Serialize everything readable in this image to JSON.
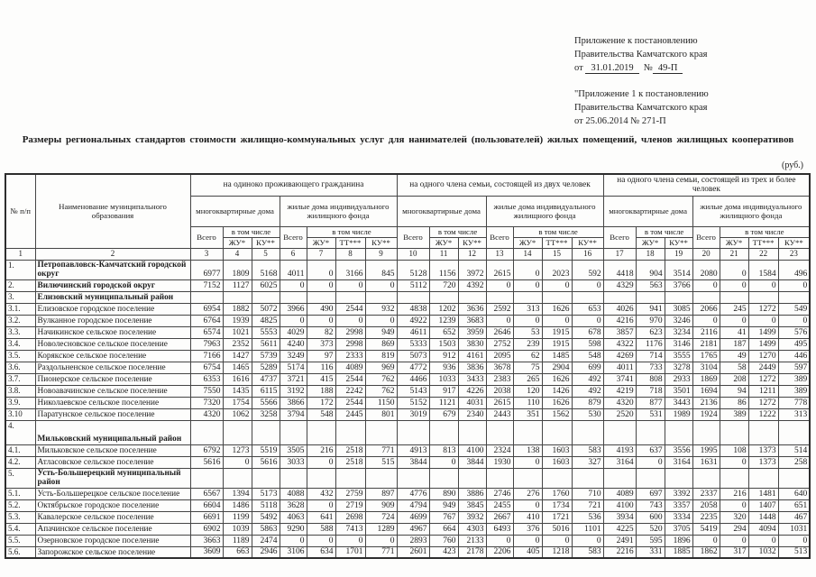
{
  "appendix_top": {
    "line1": "Приложение к постановлению",
    "line2": "Правительства Камчатского края",
    "prefix": "от",
    "date": "31.01.2019",
    "num_sign": "№",
    "number": "49-П"
  },
  "appendix_bottom": {
    "line1": "\"Приложение 1 к постановлению",
    "line2": "Правительства Камчатского края",
    "line3": "от 25.06.2014   № 271-П"
  },
  "title": "Размеры региональных стандартов стоимости жилищно-коммунальных услуг для нанимателей (пользователей) жилых помещений, членов жилищных кооперативов",
  "currency_note": "(руб.)",
  "table": {
    "headers": {
      "num": "№ п/п",
      "name": "Наименование муниципального образования",
      "groups": [
        "на одиноко проживающего гражданина",
        "на одного члена семьи, состоящей из двух человек",
        "на одного члена семьи, состоящей из трех и более человек"
      ],
      "mkd": "многоквартирные дома",
      "izhf": "жилые дома индивидуального жилищного фонда",
      "total": "Всего",
      "including": "в том числе",
      "zhu": "ЖУ*",
      "tt": "ТТ***",
      "ku": "КУ**"
    },
    "column_numbers": [
      "1",
      "2",
      "3",
      "4",
      "5",
      "6",
      "7",
      "8",
      "9",
      "10",
      "11",
      "12",
      "13",
      "14",
      "15",
      "16",
      "17",
      "18",
      "19",
      "20",
      "21",
      "22",
      "23"
    ],
    "rows": [
      {
        "num": "1.",
        "name": "Петропавловск-Камчатский городской округ",
        "bold": true,
        "values": [
          6977,
          1809,
          5168,
          4011,
          0,
          3166,
          845,
          5128,
          1156,
          3972,
          2615,
          0,
          2023,
          592,
          4418,
          904,
          3514,
          2080,
          0,
          1584,
          496
        ]
      },
      {
        "num": "2.",
        "name": "Вилючинский городской округ",
        "bold": true,
        "values": [
          7152,
          1127,
          6025,
          0,
          0,
          0,
          0,
          5112,
          720,
          4392,
          0,
          0,
          0,
          0,
          4329,
          563,
          3766,
          0,
          0,
          0,
          0
        ]
      },
      {
        "num": "3.",
        "name": "Елизовский муниципальный район",
        "bold": true,
        "values": []
      },
      {
        "num": "3.1.",
        "name": "Елизовское городское поселение",
        "values": [
          6954,
          1882,
          5072,
          3966,
          490,
          2544,
          932,
          4838,
          1202,
          3636,
          2592,
          313,
          1626,
          653,
          4026,
          941,
          3085,
          2066,
          245,
          1272,
          549
        ]
      },
      {
        "num": "3.2.",
        "name": "Вулканное городское поселение",
        "values": [
          6764,
          1939,
          4825,
          0,
          0,
          0,
          0,
          4922,
          1239,
          3683,
          0,
          0,
          0,
          0,
          4216,
          970,
          3246,
          0,
          0,
          0,
          0
        ]
      },
      {
        "num": "3.3.",
        "name": "Начикинское сельское поселение",
        "values": [
          6574,
          1021,
          5553,
          4029,
          82,
          2998,
          949,
          4611,
          652,
          3959,
          2646,
          53,
          1915,
          678,
          3857,
          623,
          3234,
          2116,
          41,
          1499,
          576
        ]
      },
      {
        "num": "3.4.",
        "name": "Новолесновское сельское поселение",
        "values": [
          7963,
          2352,
          5611,
          4240,
          373,
          2998,
          869,
          5333,
          1503,
          3830,
          2752,
          239,
          1915,
          598,
          4322,
          1176,
          3146,
          2181,
          187,
          1499,
          495
        ]
      },
      {
        "num": "3.5.",
        "name": "Корякское сельское поселение",
        "values": [
          7166,
          1427,
          5739,
          3249,
          97,
          2333,
          819,
          5073,
          912,
          4161,
          2095,
          62,
          1485,
          548,
          4269,
          714,
          3555,
          1765,
          49,
          1270,
          446
        ]
      },
      {
        "num": "3.6.",
        "name": "Раздольненское сельское поселение",
        "values": [
          6754,
          1465,
          5289,
          5174,
          116,
          4089,
          969,
          4772,
          936,
          3836,
          3678,
          75,
          2904,
          699,
          4011,
          733,
          3278,
          3104,
          58,
          2449,
          597
        ]
      },
      {
        "num": "3.7.",
        "name": "Пионерское сельское поселение",
        "values": [
          6353,
          1616,
          4737,
          3721,
          415,
          2544,
          762,
          4466,
          1033,
          3433,
          2383,
          265,
          1626,
          492,
          3741,
          808,
          2933,
          1869,
          208,
          1272,
          389
        ]
      },
      {
        "num": "3.8.",
        "name": "Новоавачинское сельское поселение",
        "values": [
          7550,
          1435,
          6115,
          3192,
          188,
          2242,
          762,
          5143,
          917,
          4226,
          2038,
          120,
          1426,
          492,
          4219,
          718,
          3501,
          1694,
          94,
          1211,
          389
        ]
      },
      {
        "num": "3.9.",
        "name": "Николаевское сельское поселение",
        "values": [
          7320,
          1754,
          5566,
          3866,
          172,
          2544,
          1150,
          5152,
          1121,
          4031,
          2615,
          110,
          1626,
          879,
          4320,
          877,
          3443,
          2136,
          86,
          1272,
          778
        ]
      },
      {
        "num": "3.10",
        "name": "Паратунское сельское поселение",
        "values": [
          4320,
          1062,
          3258,
          3794,
          548,
          2445,
          801,
          3019,
          679,
          2340,
          2443,
          351,
          1562,
          530,
          2520,
          531,
          1989,
          1924,
          389,
          1222,
          313
        ]
      },
      {
        "num": "4.",
        "name": "Мильковский муниципальный район",
        "bold": true,
        "tall": true,
        "values": []
      },
      {
        "num": "4.1.",
        "name": "Мильковское сельское поселение",
        "values": [
          6792,
          1273,
          5519,
          3505,
          216,
          2518,
          771,
          4913,
          813,
          4100,
          2324,
          138,
          1603,
          583,
          4193,
          637,
          3556,
          1995,
          108,
          1373,
          514
        ]
      },
      {
        "num": "4.2.",
        "name": "Атласовское сельское поселение",
        "values": [
          5616,
          0,
          5616,
          3033,
          0,
          2518,
          515,
          3844,
          0,
          3844,
          1930,
          0,
          1603,
          327,
          3164,
          0,
          3164,
          1631,
          0,
          1373,
          258
        ]
      },
      {
        "num": "5.",
        "name": "Усть-Большерецкий муниципальный район",
        "bold": true,
        "values": []
      },
      {
        "num": "5.1.",
        "name": "Усть-Большерецкое сельское поселение",
        "values": [
          6567,
          1394,
          5173,
          4088,
          432,
          2759,
          897,
          4776,
          890,
          3886,
          2746,
          276,
          1760,
          710,
          4089,
          697,
          3392,
          2337,
          216,
          1481,
          640
        ]
      },
      {
        "num": "5.2.",
        "name": "Октябрьское городское поселение",
        "values": [
          6604,
          1486,
          5118,
          3628,
          0,
          2719,
          909,
          4794,
          949,
          3845,
          2455,
          0,
          1734,
          721,
          4100,
          743,
          3357,
          2058,
          0,
          1407,
          651
        ]
      },
      {
        "num": "5.3.",
        "name": "Кавалерское сельское поселение",
        "values": [
          6691,
          1199,
          5492,
          4063,
          641,
          2698,
          724,
          4699,
          767,
          3932,
          2667,
          410,
          1721,
          536,
          3934,
          600,
          3334,
          2235,
          320,
          1448,
          467
        ]
      },
      {
        "num": "5.4.",
        "name": "Апачинское сельское поселение",
        "values": [
          6902,
          1039,
          5863,
          9290,
          588,
          7413,
          1289,
          4967,
          664,
          4303,
          6493,
          376,
          5016,
          1101,
          4225,
          520,
          3705,
          5419,
          294,
          4094,
          1031
        ]
      },
      {
        "num": "5.5.",
        "name": "Озерновское городское поселение",
        "values": [
          3663,
          1189,
          2474,
          0,
          0,
          0,
          0,
          2893,
          760,
          2133,
          0,
          0,
          0,
          0,
          2491,
          595,
          1896,
          0,
          0,
          0,
          0
        ]
      },
      {
        "num": "5.6.",
        "name": "Запорожское сельское поселение",
        "values": [
          3609,
          663,
          2946,
          3106,
          634,
          1701,
          771,
          2601,
          423,
          2178,
          2206,
          405,
          1218,
          583,
          2216,
          331,
          1885,
          1862,
          317,
          1032,
          513
        ]
      }
    ]
  }
}
